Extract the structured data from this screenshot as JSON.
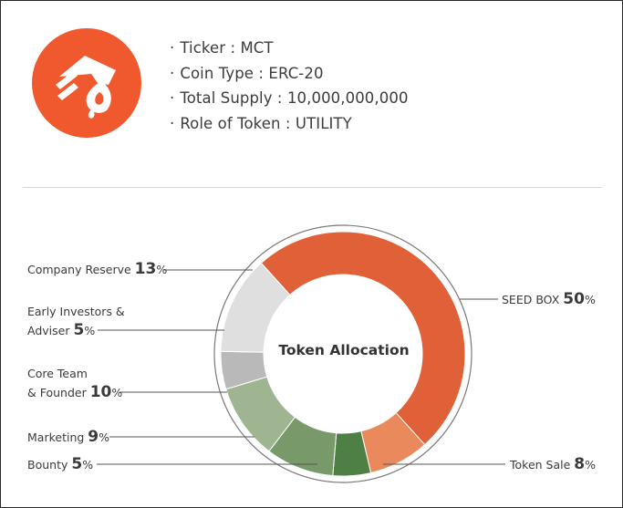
{
  "token_info": [
    {
      "label": "Ticker",
      "value": "MCT"
    },
    {
      "label": "Coin Type",
      "value": "ERC-20"
    },
    {
      "label": "Total Supply",
      "value": "10,000,000,000"
    },
    {
      "label": "Role of Token",
      "value": "UTILITY"
    }
  ],
  "logo": {
    "icon": "hand-drop-icon",
    "bg_color": "#f0582e"
  },
  "chart_data": {
    "type": "pie",
    "style": "donut",
    "title": "Token Allocation",
    "unit": "%",
    "slices": [
      {
        "name": "SEED BOX",
        "value": 50,
        "color": "#e06037"
      },
      {
        "name": "Token Sale",
        "value": 8,
        "color": "#ea8a5c"
      },
      {
        "name": "Bounty",
        "value": 5,
        "color": "#4e8045"
      },
      {
        "name": "Marketing",
        "value": 9,
        "color": "#78996a"
      },
      {
        "name": "Core Team & Founder",
        "value": 10,
        "color": "#9fb592"
      },
      {
        "name": "Early Investors & Adviser",
        "value": 5,
        "color": "#b9b9b9"
      },
      {
        "name": "Company Reserve",
        "value": 13,
        "color": "#dfdfdf"
      }
    ]
  }
}
